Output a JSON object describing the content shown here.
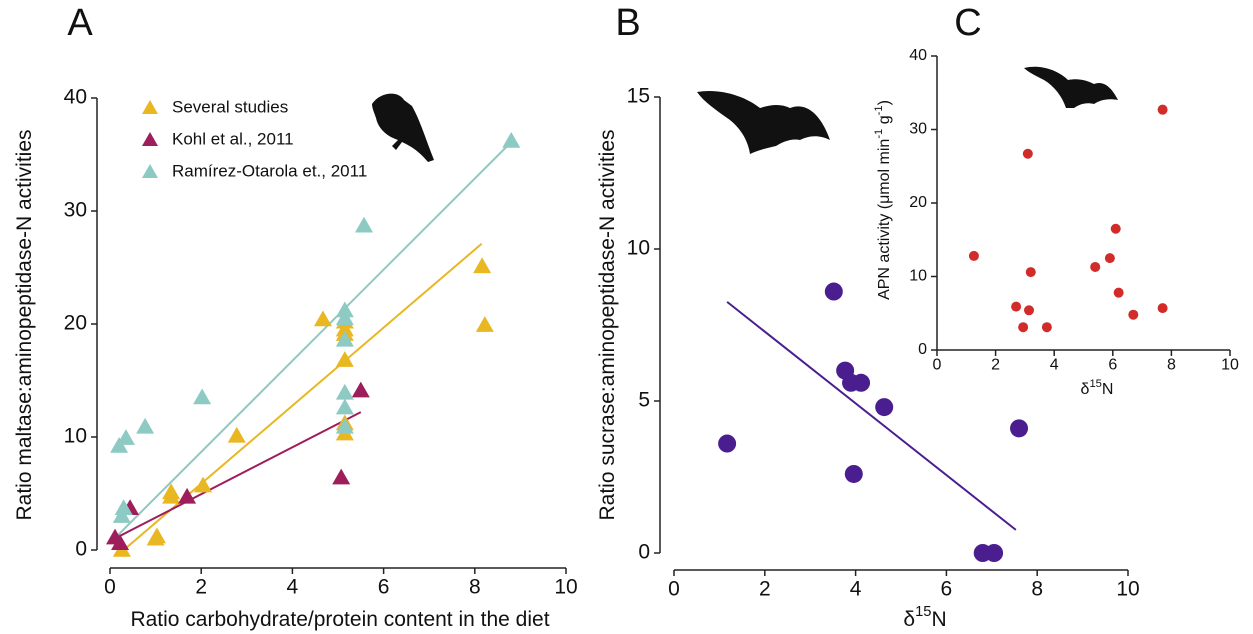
{
  "chart_data": [
    {
      "type": "scatter",
      "panel_label": "A",
      "xlabel": "Ratio carbohydrate/protein content in the diet",
      "ylabel": "Ratio maltase:aminopeptidase-N activities",
      "xlim": [
        0,
        10
      ],
      "ylim": [
        0,
        40
      ],
      "xticks": [
        0,
        2,
        4,
        6,
        8,
        10
      ],
      "yticks": [
        0,
        10,
        20,
        30,
        40
      ],
      "marker": "triangle",
      "legend": "top-left",
      "series": [
        {
          "name": "Several studies",
          "color": "#e8b722",
          "x": [
            0.26,
            1.03,
            1.0,
            1.34,
            1.34,
            2.04,
            2.78,
            4.67,
            5.15,
            5.15,
            5.15,
            5.15,
            5.15,
            5.15,
            8.16,
            8.22
          ],
          "values": [
            0,
            1.2,
            1.0,
            4.7,
            5.1,
            5.7,
            10.1,
            20.4,
            20.2,
            19.5,
            19.1,
            16.8,
            11.2,
            10.3,
            25.1,
            19.9
          ],
          "fit": {
            "x": [
              0.3,
              8.15
            ],
            "y": [
              0,
              27.1
            ]
          }
        },
        {
          "name": "Kohl et al., 2011",
          "color": "#9e1d5b",
          "x": [
            0.11,
            0.22,
            0.44,
            1.69,
            5.07,
            5.5
          ],
          "values": [
            1.1,
            0.6,
            3.7,
            4.7,
            6.4,
            14.1
          ],
          "fit": {
            "x": [
              0.1,
              5.5
            ],
            "y": [
              1.0,
              12.2
            ]
          }
        },
        {
          "name": "Ramírez-Otarola et., 2011",
          "color": "#8ccac3",
          "x": [
            0.2,
            0.35,
            0.26,
            0.3,
            0.77,
            2.02,
            5.15,
            5.15,
            5.15,
            5.15,
            5.15,
            5.15,
            5.57,
            8.8
          ],
          "values": [
            9.2,
            9.9,
            3.0,
            3.7,
            10.9,
            13.5,
            21.2,
            20.5,
            18.6,
            13.9,
            12.6,
            10.9,
            28.7,
            36.2
          ],
          "fit": {
            "x": [
              0.17,
              8.8
            ],
            "y": [
              1.3,
              36.1
            ]
          }
        }
      ]
    },
    {
      "type": "scatter",
      "panel_label": "B",
      "xlabel": "δ15N",
      "ylabel": "Ratio sucrase:aminopeptidase-N activities",
      "xlim": [
        0,
        10
      ],
      "ylim": [
        0,
        15
      ],
      "xticks": [
        0,
        2,
        4,
        6,
        8,
        10
      ],
      "yticks": [
        0,
        5,
        10,
        15
      ],
      "marker": "circle",
      "series": [
        {
          "color": "#4a1e8f",
          "x": [
            1.17,
            3.52,
            3.77,
            3.9,
            4.12,
            4.63,
            3.96,
            7.6,
            6.8,
            7.05
          ],
          "values": [
            3.6,
            8.6,
            6.0,
            5.6,
            5.6,
            4.8,
            2.6,
            4.1,
            0,
            0
          ],
          "fit": {
            "x": [
              1.17,
              7.53
            ],
            "y": [
              8.26,
              0.76
            ]
          }
        }
      ]
    },
    {
      "type": "scatter",
      "panel_label": "C",
      "xlabel": "δ15N",
      "ylabel": "APN activity (μmol min-1 g-1)",
      "xlim": [
        0,
        10
      ],
      "ylim": [
        0,
        40
      ],
      "xticks": [
        0,
        2,
        4,
        6,
        8,
        10
      ],
      "yticks": [
        0,
        10,
        20,
        30,
        40
      ],
      "marker": "circle",
      "series": [
        {
          "color": "#d12c2a",
          "x": [
            1.26,
            2.7,
            2.94,
            3.1,
            3.14,
            3.2,
            3.75,
            5.4,
            5.9,
            6.1,
            6.2,
            6.7,
            7.7,
            7.7
          ],
          "values": [
            12.8,
            5.9,
            3.1,
            26.7,
            5.4,
            10.6,
            3.1,
            11.3,
            12.5,
            16.5,
            7.8,
            4.8,
            32.7,
            5.7
          ]
        }
      ]
    }
  ]
}
